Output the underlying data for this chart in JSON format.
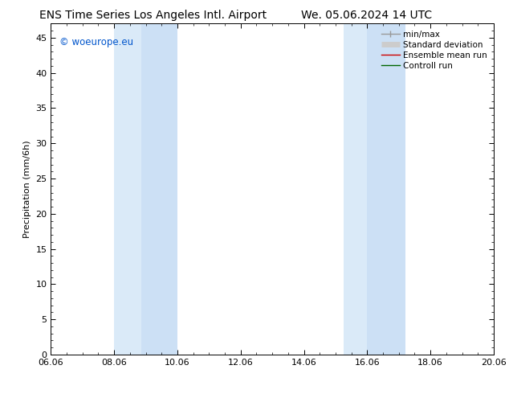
{
  "title_left": "ENS Time Series Los Angeles Intl. Airport",
  "title_right": "We. 05.06.2024 14 UTC",
  "ylabel": "Precipitation (mm/6h)",
  "xlabel_ticks": [
    "06.06",
    "08.06",
    "10.06",
    "12.06",
    "14.06",
    "16.06",
    "18.06",
    "20.06"
  ],
  "xlim": [
    0,
    14
  ],
  "ylim": [
    0,
    47
  ],
  "yticks": [
    0,
    5,
    10,
    15,
    20,
    25,
    30,
    35,
    40,
    45
  ],
  "shaded_bands": [
    {
      "x_start": 2.0,
      "x_end": 2.85,
      "color": "#daeaf8"
    },
    {
      "x_start": 2.85,
      "x_end": 4.0,
      "color": "#cce0f5"
    },
    {
      "x_start": 9.25,
      "x_end": 10.0,
      "color": "#daeaf8"
    },
    {
      "x_start": 10.0,
      "x_end": 11.2,
      "color": "#cce0f5"
    }
  ],
  "watermark_text": "© woeurope.eu",
  "watermark_color": "#0055cc",
  "bg_color": "#ffffff",
  "plot_bg_color": "#ffffff",
  "legend_entries": [
    {
      "label": "min/max",
      "color": "#999999",
      "lw": 1.0
    },
    {
      "label": "Standard deviation",
      "color": "#cccccc",
      "lw": 5
    },
    {
      "label": "Ensemble mean run",
      "color": "#cc0000",
      "lw": 1.0
    },
    {
      "label": "Controll run",
      "color": "#006600",
      "lw": 1.0
    }
  ],
  "title_fontsize": 10,
  "axis_fontsize": 8,
  "tick_fontsize": 8,
  "legend_fontsize": 7.5,
  "font_family": "DejaVu Sans"
}
